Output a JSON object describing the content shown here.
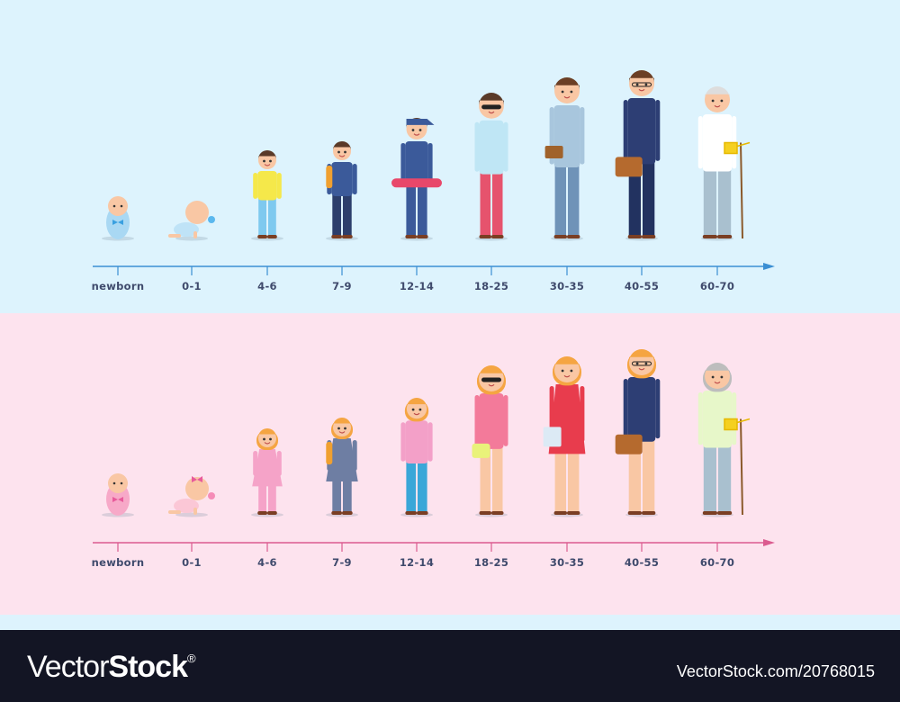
{
  "rows": [
    {
      "id": "male",
      "ages": [
        "newborn",
        "0-1",
        "4-6",
        "7-9",
        "12-14",
        "18-25",
        "30-35",
        "40-55",
        "60-70"
      ],
      "axis_color": "#3b8fd3",
      "background": "#ddf3fd"
    },
    {
      "id": "female",
      "ages": [
        "newborn",
        "0-1",
        "4-6",
        "7-9",
        "12-14",
        "18-25",
        "30-35",
        "40-55",
        "60-70"
      ],
      "axis_color": "#db5b8f",
      "background": "#fde3ee"
    }
  ],
  "watermark": {
    "brand_light": "Vector",
    "brand_bold": "Stock",
    "registered": "®",
    "url": "VectorStock.com/20768015"
  },
  "colors": {
    "label": "#3f4a6c",
    "footer": "#131524",
    "skin": "#f9c7a4"
  }
}
